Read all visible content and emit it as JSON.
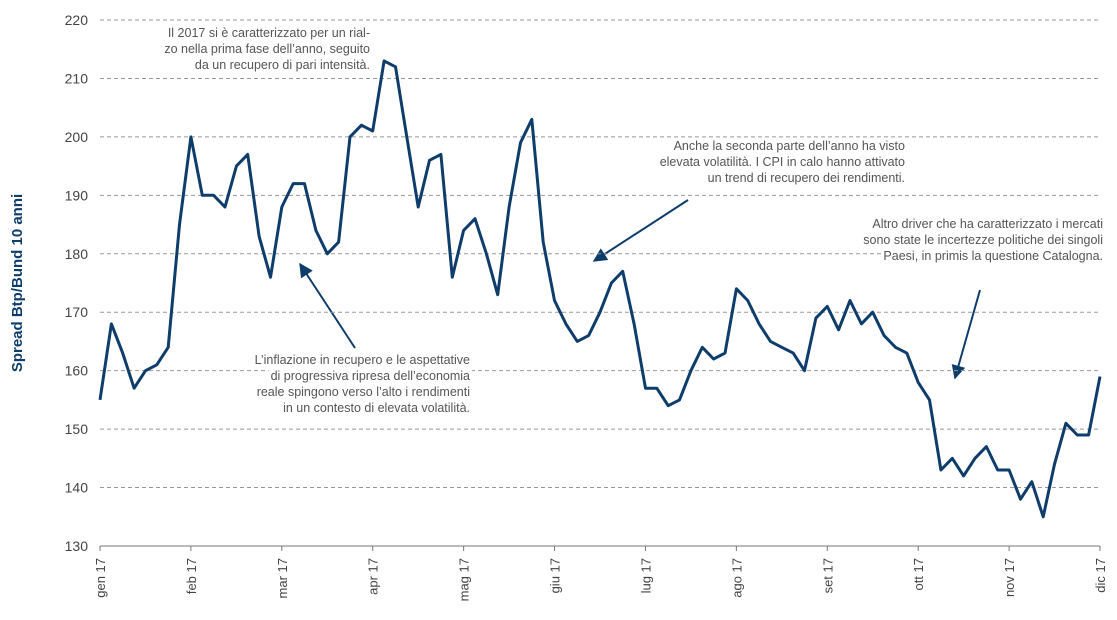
{
  "chart_data": {
    "type": "line",
    "y_label": "Spread Btp/Bund 10 anni",
    "categories": [
      "gen 17",
      null,
      null,
      null,
      null,
      null,
      null,
      null,
      "feb 17",
      null,
      null,
      null,
      null,
      null,
      null,
      null,
      "mar 17",
      null,
      null,
      null,
      null,
      null,
      null,
      null,
      "apr 17",
      null,
      null,
      null,
      null,
      null,
      null,
      null,
      "mag 17",
      null,
      null,
      null,
      null,
      null,
      null,
      null,
      "giu 17",
      null,
      null,
      null,
      null,
      null,
      null,
      null,
      "lug 17",
      null,
      null,
      null,
      null,
      null,
      null,
      null,
      "ago 17",
      null,
      null,
      null,
      null,
      null,
      null,
      null,
      "set 17",
      null,
      null,
      null,
      null,
      null,
      null,
      null,
      "ott 17",
      null,
      null,
      null,
      null,
      null,
      null,
      null,
      "nov 17",
      null,
      null,
      null,
      null,
      null,
      null,
      null,
      "dic 17"
    ],
    "series": [
      {
        "name": "Spread Btp/Bund 10 anni",
        "color": "#0e3d6b",
        "values": [
          155,
          168,
          163,
          157,
          160,
          161,
          164,
          185,
          200,
          190,
          190,
          188,
          195,
          197,
          183,
          176,
          188,
          192,
          192,
          184,
          180,
          182,
          200,
          202,
          201,
          213,
          212,
          200,
          188,
          196,
          197,
          176,
          184,
          186,
          180,
          173,
          188,
          199,
          203,
          182,
          172,
          168,
          165,
          166,
          170,
          175,
          177,
          168,
          157,
          157,
          154,
          155,
          160,
          164,
          162,
          163,
          174,
          172,
          168,
          165,
          164,
          163,
          160,
          169,
          171,
          167,
          172,
          168,
          170,
          166,
          164,
          163,
          158,
          155,
          143,
          145,
          142,
          145,
          147,
          143,
          143,
          138,
          141,
          135,
          144,
          151,
          149,
          149,
          159
        ]
      }
    ],
    "ylim": [
      130,
      220
    ],
    "yticks": [
      130,
      140,
      150,
      160,
      170,
      180,
      190,
      200,
      210,
      220
    ],
    "grid": true,
    "annotations": [
      {
        "lines": [
          "Il 2017 si è caratterizzato per un rial-",
          "zo nella prima fase dell’anno, seguito",
          "da un recupero di pari intensità."
        ]
      },
      {
        "lines": [
          "Anche la seconda parte dell’anno ha visto",
          "elevata volatilità. I CPI in calo hanno attivato",
          "un trend di recupero dei rendimenti."
        ]
      },
      {
        "lines": [
          "Altro driver che ha caratterizzato i mercati",
          "sono state le incertezze politiche dei singoli",
          "Paesi, in primis la questione Catalogna."
        ]
      },
      {
        "lines": [
          "L’inflazione in recupero e le aspettative",
          "di progressiva ripresa dell’economia",
          "reale spingono verso l’alto i rendimenti",
          "in un contesto di elevata volatilità."
        ]
      }
    ]
  }
}
